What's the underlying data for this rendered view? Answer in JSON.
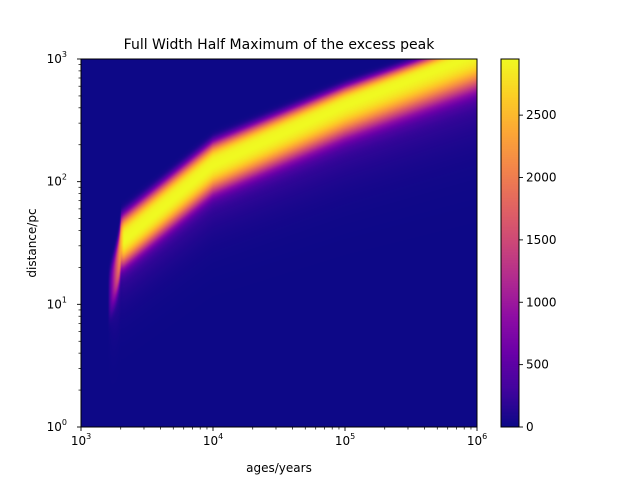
{
  "chart_data": {
    "type": "heatmap",
    "title": "Full Width Half Maximum of the excess peak",
    "xlabel": "ages/years",
    "ylabel": "distance/pc",
    "x_scale": "log",
    "y_scale": "log",
    "xlim": [
      1000,
      1000000
    ],
    "ylim": [
      1,
      1000
    ],
    "x_ticks": [
      {
        "value": 1000,
        "base": "10",
        "exp": "3"
      },
      {
        "value": 10000,
        "base": "10",
        "exp": "4"
      },
      {
        "value": 100000,
        "base": "10",
        "exp": "5"
      },
      {
        "value": 1000000,
        "base": "10",
        "exp": "6"
      }
    ],
    "y_ticks": [
      {
        "value": 1,
        "base": "10",
        "exp": "0"
      },
      {
        "value": 10,
        "base": "10",
        "exp": "1"
      },
      {
        "value": 100,
        "base": "10",
        "exp": "2"
      },
      {
        "value": 1000,
        "base": "10",
        "exp": "3"
      }
    ],
    "grid": false,
    "colormap": "plasma",
    "colorbar": {
      "vmin": 0,
      "vmax": 2950,
      "ticks": [
        "0",
        "500",
        "1000",
        "1500",
        "2000",
        "2500"
      ],
      "tick_values": [
        0,
        500,
        1000,
        1500,
        2000,
        2500
      ]
    },
    "ridge": {
      "onset_age": 1600,
      "points": [
        {
          "age": 2000,
          "distance": 30
        },
        {
          "age": 10000,
          "distance": 130
        },
        {
          "age": 100000,
          "distance": 400
        },
        {
          "age": 1000000,
          "distance": 1050
        }
      ]
    }
  }
}
